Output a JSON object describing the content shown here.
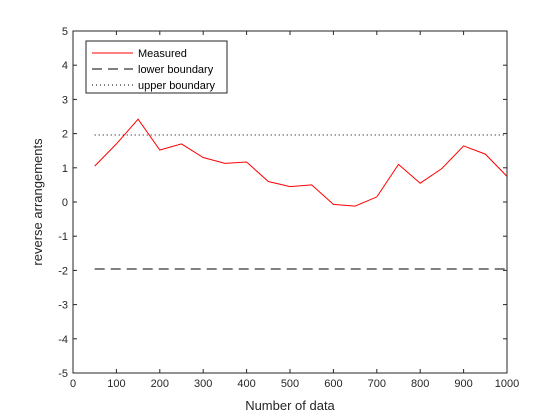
{
  "chart_data": {
    "type": "line",
    "title": "",
    "xlabel": "Number of data",
    "ylabel": "reverse arrangements",
    "xlim": [
      0,
      1000
    ],
    "ylim": [
      -5,
      5
    ],
    "xticks": [
      0,
      100,
      200,
      300,
      400,
      500,
      600,
      700,
      800,
      900,
      1000
    ],
    "yticks": [
      -5,
      -4,
      -3,
      -2,
      -1,
      0,
      1,
      2,
      3,
      4,
      5
    ],
    "grid": false,
    "legend_position": "top-left",
    "series": [
      {
        "name": "Measured",
        "color": "#ff0000",
        "style": "solid",
        "x": [
          50,
          100,
          150,
          200,
          250,
          300,
          350,
          400,
          450,
          500,
          550,
          600,
          650,
          700,
          750,
          800,
          850,
          900,
          950,
          1000
        ],
        "y": [
          1.05,
          1.7,
          2.42,
          1.52,
          1.7,
          1.3,
          1.13,
          1.17,
          0.6,
          0.45,
          0.5,
          -0.07,
          -0.12,
          0.15,
          1.1,
          0.55,
          0.98,
          1.64,
          1.4,
          0.75
        ]
      },
      {
        "name": "lower boundary",
        "color": "#000000",
        "style": "dashed",
        "x": [
          50,
          1000
        ],
        "y": [
          -1.96,
          -1.96
        ]
      },
      {
        "name": "upper boundary",
        "color": "#000000",
        "style": "dotted",
        "x": [
          50,
          1000
        ],
        "y": [
          1.96,
          1.96
        ]
      }
    ]
  }
}
